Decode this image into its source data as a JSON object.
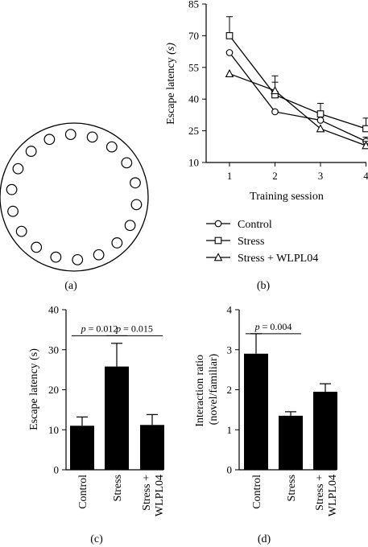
{
  "figure": {
    "panel_labels": [
      "(a)",
      "(b)",
      "(c)",
      "(d)"
    ]
  },
  "chart_data": [
    {
      "panel": "(a)",
      "type": "diagram",
      "description_visible": "circular maze with holes",
      "hole_count": 18
    },
    {
      "panel": "(b)",
      "type": "line",
      "x": [
        1,
        2,
        3,
        4
      ],
      "xlabel": "Training session",
      "ylabel": "Escape latency",
      "ylabel_unit": "(s)",
      "ylim": [
        10,
        85
      ],
      "yticks": [
        10,
        25,
        40,
        55,
        70,
        85
      ],
      "xticks": [
        1,
        2,
        3,
        4
      ],
      "legend_position": "below",
      "series": [
        {
          "name": "Control",
          "marker": "circle",
          "values": [
            62,
            34,
            30,
            20
          ],
          "err": [
            0,
            0,
            3,
            2
          ]
        },
        {
          "name": "Stress",
          "marker": "square",
          "values": [
            70,
            42,
            33,
            26
          ],
          "err": [
            9,
            6,
            5,
            5
          ]
        },
        {
          "name": "Stress + WLPL04",
          "marker": "triangle",
          "values": [
            52,
            44,
            26,
            18
          ],
          "err": [
            0,
            7,
            0,
            2
          ]
        }
      ]
    },
    {
      "panel": "(c)",
      "type": "bar",
      "categories": [
        "Control",
        "Stress",
        "Stress +\nWLPL04"
      ],
      "category_lines": [
        [
          "Control"
        ],
        [
          "Stress"
        ],
        [
          "Stress +",
          "WLPL04"
        ]
      ],
      "values": [
        11,
        25.8,
        11.2
      ],
      "err": [
        2.2,
        5.8,
        2.6
      ],
      "ylabel": "Escape latency (s)",
      "ylim": [
        0,
        40
      ],
      "yticks": [
        0,
        10,
        20,
        30,
        40
      ],
      "brackets": [
        {
          "from": 0,
          "to": 1,
          "p_prefix": "p",
          "p_value": " = 0.012",
          "y": 33.5
        },
        {
          "from": 1,
          "to": 2,
          "p_prefix": "p",
          "p_value": " = 0.015",
          "y": 33.5
        }
      ]
    },
    {
      "panel": "(d)",
      "type": "bar",
      "categories": [
        "Control",
        "Stress",
        "Stress +\nWLPL04"
      ],
      "category_lines": [
        [
          "Control"
        ],
        [
          "Stress"
        ],
        [
          "Stress +",
          "WLPL04"
        ]
      ],
      "values": [
        2.9,
        1.35,
        1.95
      ],
      "err": [
        0.5,
        0.1,
        0.2
      ],
      "ylabel_lines": [
        "Interaction ratio",
        "(novel/familiar)"
      ],
      "ylim": [
        0,
        4
      ],
      "yticks": [
        0,
        1,
        2,
        3,
        4
      ],
      "brackets": [
        {
          "from": 0,
          "to": 1,
          "p_prefix": "p",
          "p_value": " = 0.004",
          "y": 3.4
        }
      ]
    }
  ]
}
